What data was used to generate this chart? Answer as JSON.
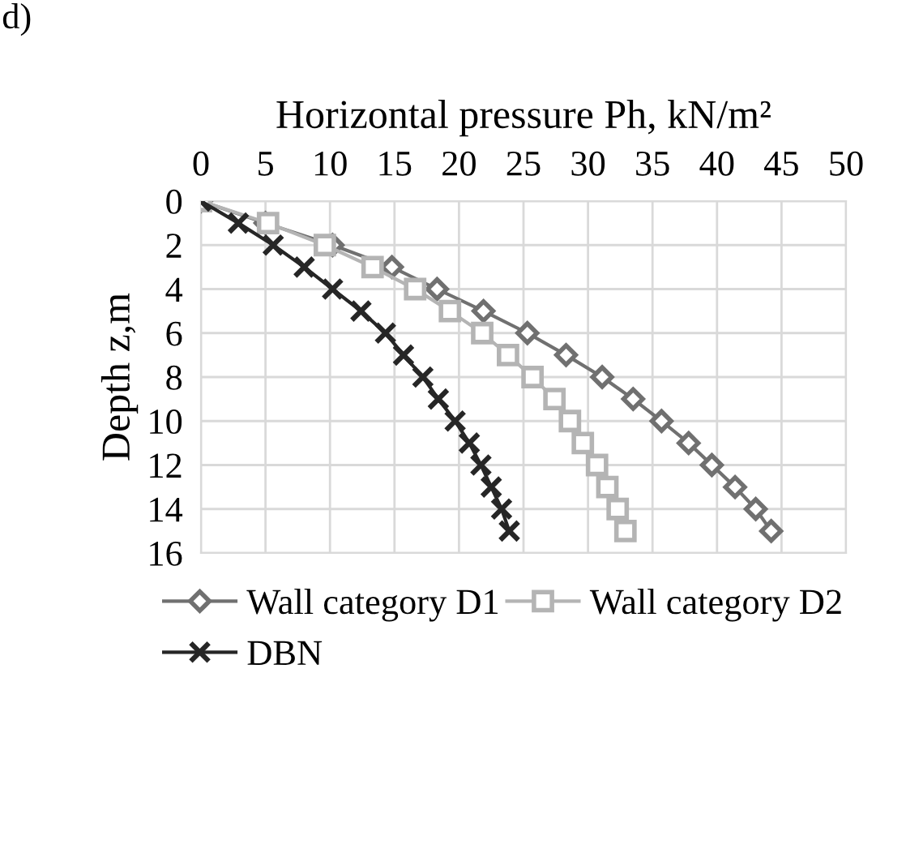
{
  "chart_data": {
    "type": "line",
    "xlabel": "Horizontal pressure Ph, kN/m²",
    "ylabel": "Depth z,m",
    "annotations": [
      "d)"
    ],
    "xlim": [
      0,
      50
    ],
    "xticks": [
      0,
      5,
      10,
      15,
      20,
      25,
      30,
      35,
      40,
      45,
      50
    ],
    "ylim": [
      16,
      0
    ],
    "yticks": [
      0,
      2,
      4,
      6,
      8,
      10,
      12,
      14,
      16
    ],
    "grid": true,
    "legend": "bottom",
    "series": [
      {
        "name": "Wall category D1",
        "color": "#707070",
        "marker": "diamond",
        "x": [
          0,
          5.0,
          10.2,
          14.8,
          18.3,
          21.9,
          25.3,
          28.3,
          31.1,
          33.5,
          35.7,
          37.8,
          39.6,
          41.4,
          43.0,
          44.2
        ],
        "values": [
          0,
          1,
          2,
          3,
          4,
          5,
          6,
          7,
          8,
          9,
          10,
          11,
          12,
          13,
          14,
          15
        ]
      },
      {
        "name": "Wall category D2",
        "color": "#b4b4b4",
        "marker": "square",
        "x": [
          0,
          5.2,
          9.6,
          13.3,
          16.6,
          19.3,
          21.8,
          23.8,
          25.7,
          27.4,
          28.6,
          29.6,
          30.7,
          31.5,
          32.3,
          32.9
        ],
        "values": [
          0,
          1,
          2,
          3,
          4,
          5,
          6,
          7,
          8,
          9,
          10,
          11,
          12,
          13,
          14,
          15
        ]
      },
      {
        "name": "DBN",
        "color": "#262626",
        "marker": "cross",
        "x": [
          0,
          2.9,
          5.6,
          8.0,
          10.2,
          12.4,
          14.3,
          15.7,
          17.2,
          18.4,
          19.7,
          20.8,
          21.7,
          22.5,
          23.3,
          23.9
        ],
        "values": [
          0,
          1,
          2,
          3,
          4,
          5,
          6,
          7,
          8,
          9,
          10,
          11,
          12,
          13,
          14,
          15
        ]
      }
    ]
  }
}
